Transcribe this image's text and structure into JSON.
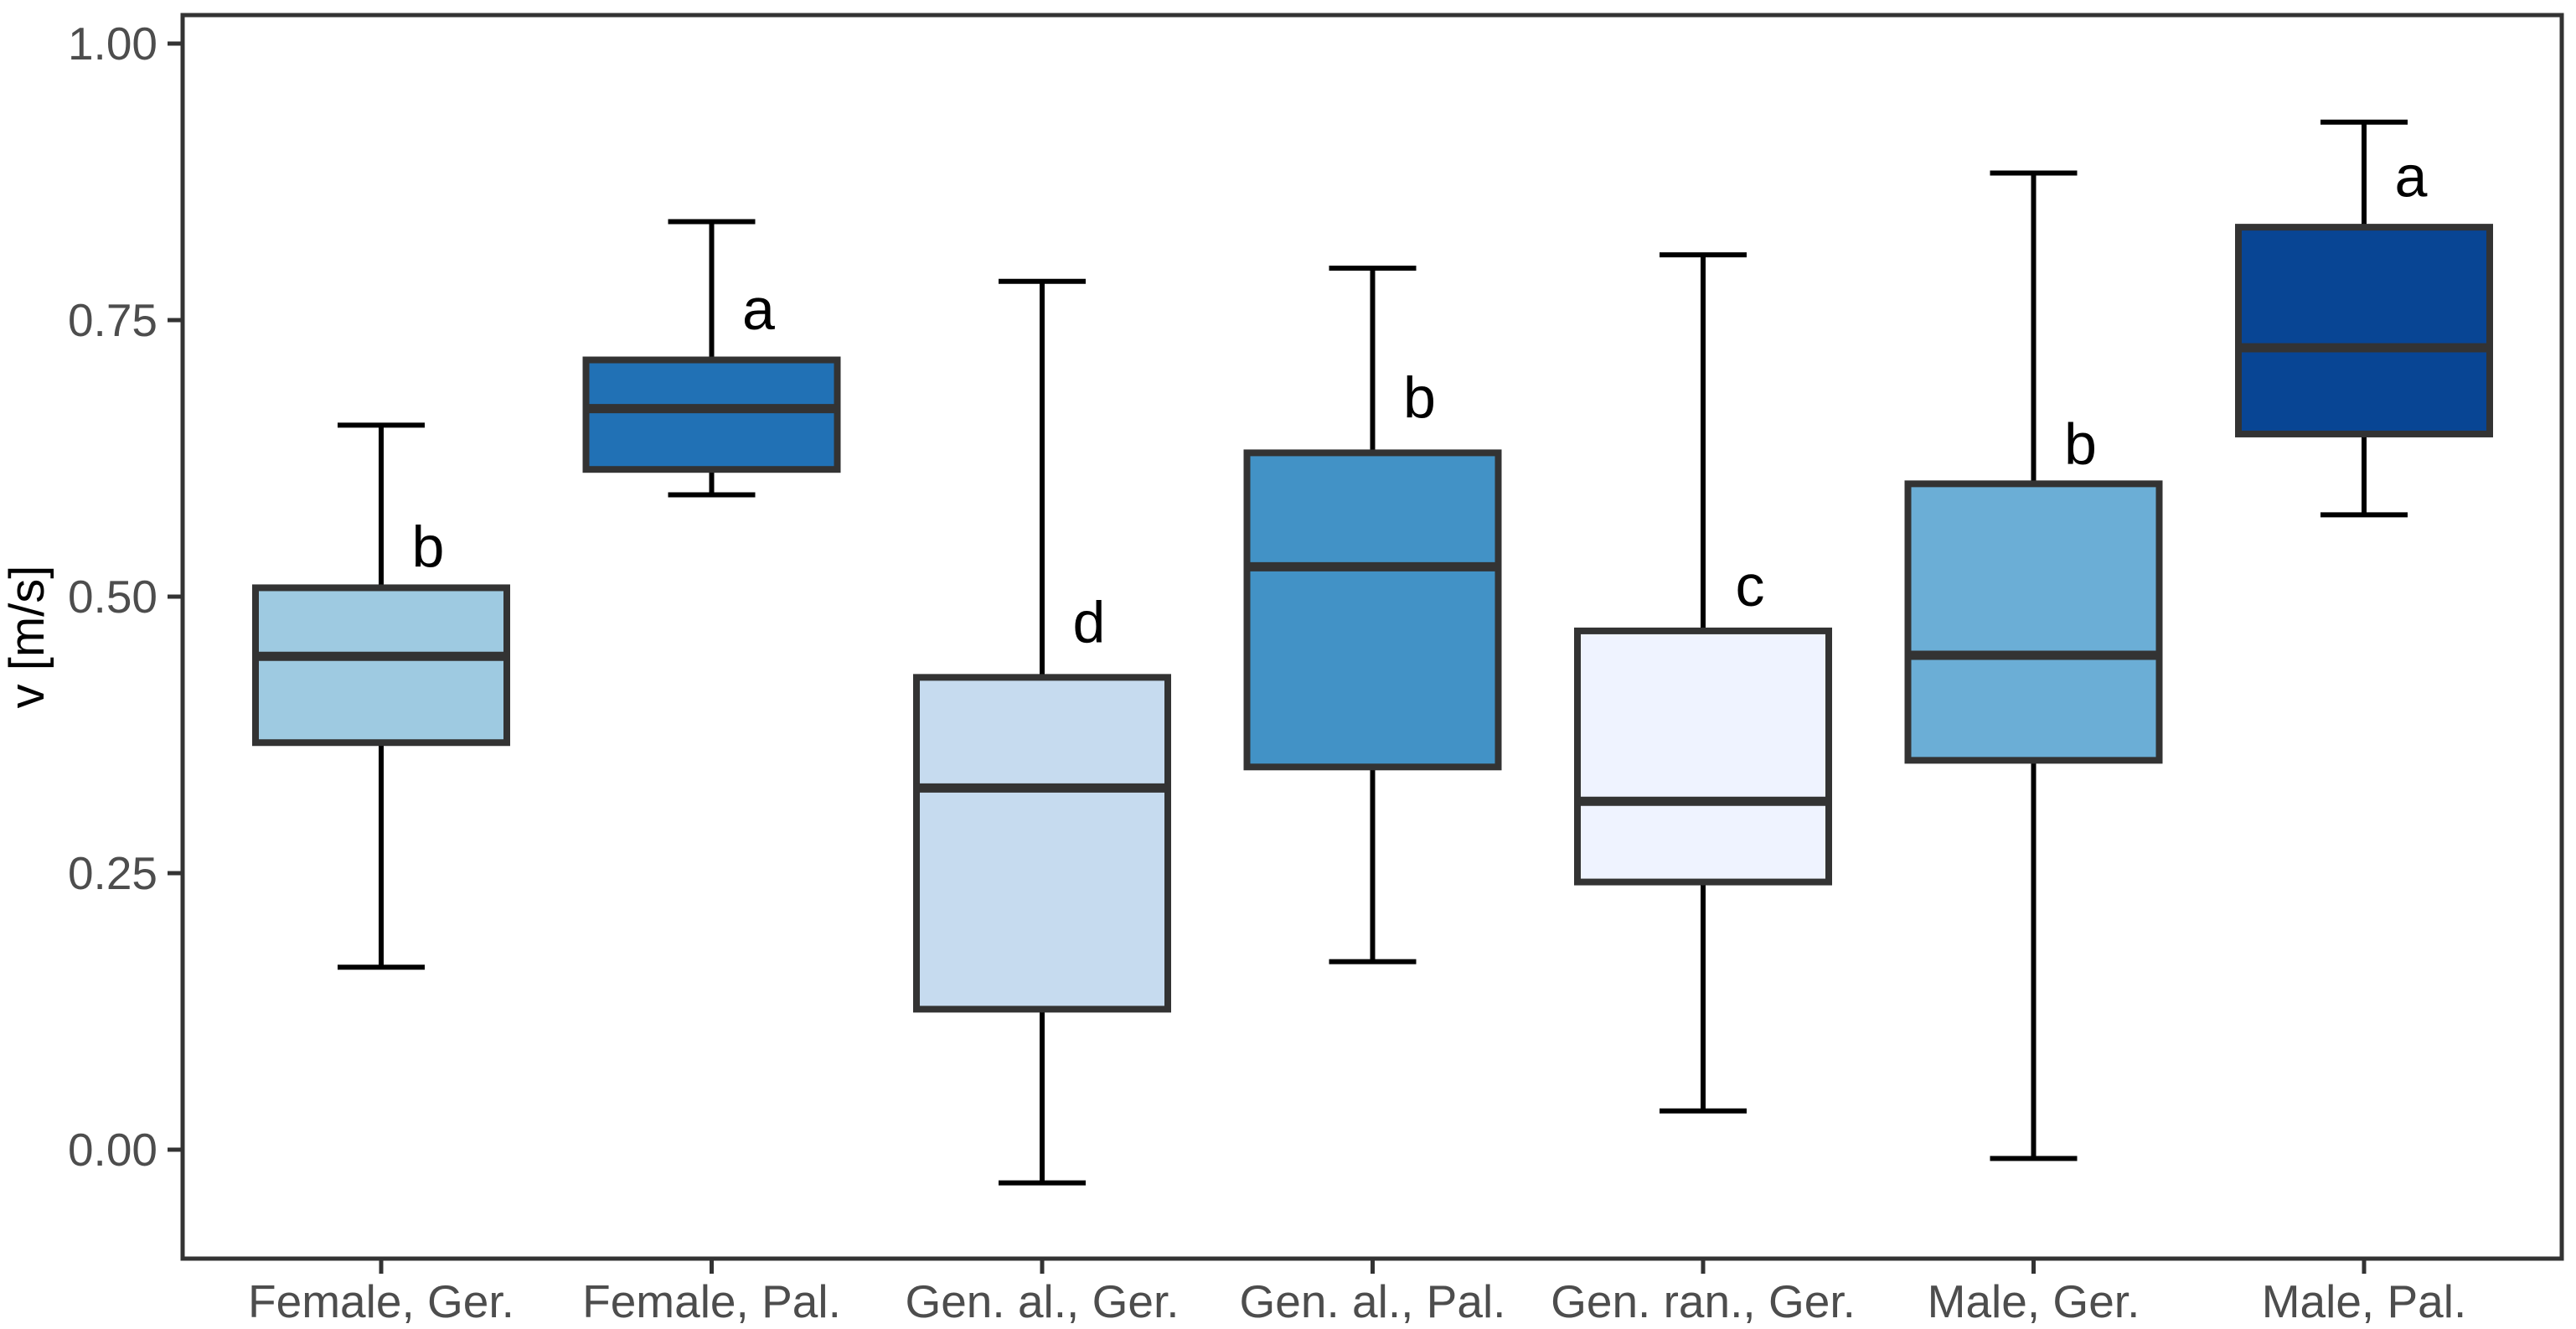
{
  "figure": {
    "background": "#ffffff"
  },
  "style": {
    "panel_border_color": "#333333",
    "box_border_color": "#333333",
    "median_color": "#333333",
    "whisker_color": "#000000",
    "tick_mark_color": "#333333",
    "tick_label_color": "#4d4d4d",
    "axis_title_color": "#000000",
    "sig_letter_color": "#000000"
  },
  "chart_data": {
    "type": "boxplot",
    "title": "",
    "xlabel": "",
    "ylabel": "v [m/s]",
    "ylim": [
      -0.1,
      1.03
    ],
    "grid": "off",
    "legend": "none",
    "yticks": [
      {
        "value": 0.0,
        "label": "0.00"
      },
      {
        "value": 0.25,
        "label": "0.25"
      },
      {
        "value": 0.5,
        "label": "0.50"
      },
      {
        "value": 0.75,
        "label": "0.75"
      },
      {
        "value": 1.0,
        "label": "1.00"
      }
    ],
    "categories": [
      "Female, Ger.",
      "Female, Pal.",
      "Gen. al., Ger.",
      "Gen. al., Pal.",
      "Gen. ran., Ger.",
      "Male, Ger.",
      "Male, Pal."
    ],
    "boxes": [
      {
        "category": "Female, Ger.",
        "whisker_low": 0.165,
        "q1": 0.368,
        "median": 0.446,
        "q3": 0.508,
        "whisker_high": 0.655,
        "fill": "#9ecae1",
        "sig_letter": "b",
        "letter_y": 0.545
      },
      {
        "category": "Female, Pal.",
        "whisker_low": 0.592,
        "q1": 0.615,
        "median": 0.67,
        "q3": 0.714,
        "whisker_high": 0.839,
        "fill": "#2171b5",
        "sig_letter": "a",
        "letter_y": 0.76
      },
      {
        "category": "Gen. al., Ger.",
        "whisker_low": -0.03,
        "q1": 0.127,
        "median": 0.327,
        "q3": 0.427,
        "whisker_high": 0.785,
        "fill": "#c6dbef",
        "sig_letter": "d",
        "letter_y": 0.477
      },
      {
        "category": "Gen. al., Pal.",
        "whisker_low": 0.17,
        "q1": 0.346,
        "median": 0.527,
        "q3": 0.63,
        "whisker_high": 0.797,
        "fill": "#4292c6",
        "sig_letter": "b",
        "letter_y": 0.68
      },
      {
        "category": "Gen. ran., Ger.",
        "whisker_low": 0.035,
        "q1": 0.242,
        "median": 0.315,
        "q3": 0.469,
        "whisker_high": 0.809,
        "fill": "#eff3ff",
        "sig_letter": "c",
        "letter_y": 0.51
      },
      {
        "category": "Male, Ger.",
        "whisker_low": -0.008,
        "q1": 0.352,
        "median": 0.447,
        "q3": 0.602,
        "whisker_high": 0.883,
        "fill": "#6baed6",
        "sig_letter": "b",
        "letter_y": 0.638
      },
      {
        "category": "Male, Pal.",
        "whisker_low": 0.574,
        "q1": 0.647,
        "median": 0.725,
        "q3": 0.834,
        "whisker_high": 0.929,
        "fill": "#084594",
        "sig_letter": "a",
        "letter_y": 0.88
      }
    ]
  }
}
